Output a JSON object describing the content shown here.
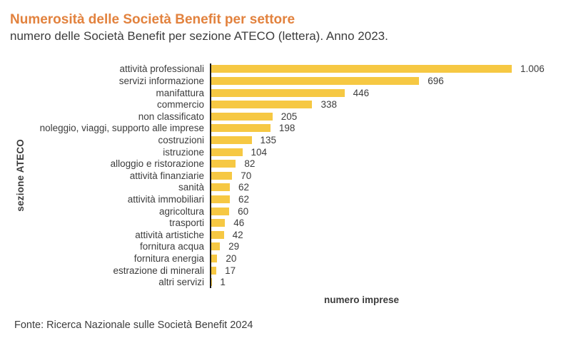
{
  "header": {
    "title": "Numerosità delle Società Benefit per settore",
    "subtitle": "numero delle Società Benefit per sezione ATECO (lettera). Anno 2023."
  },
  "chart_data": {
    "type": "bar",
    "orientation": "horizontal",
    "title": "Numerosità delle Società Benefit per settore",
    "subtitle": "numero delle Società Benefit per sezione ATECO (lettera). Anno 2023.",
    "xlabel": "numero imprese",
    "ylabel": "sezione ATECO",
    "xlim": [
      0,
      1006
    ],
    "grid": false,
    "legend": false,
    "bar_color": "#f6c843",
    "axis_color": "#1a1a1a",
    "categories": [
      "attività professionali",
      "servizi informazione",
      "manifattura",
      "commercio",
      "non classificato",
      "noleggio, viaggi, supporto alle imprese",
      "costruzioni",
      "istruzione",
      "alloggio e ristorazione",
      "attività finanziarie",
      "sanità",
      "attività immobiliari",
      "agricoltura",
      "trasporti",
      "attività artistiche",
      "fornitura acqua",
      "fornitura energia",
      "estrazione di minerali",
      "altri servizi"
    ],
    "values": [
      1006,
      696,
      446,
      338,
      205,
      198,
      135,
      104,
      82,
      70,
      62,
      62,
      60,
      46,
      42,
      29,
      20,
      17,
      1
    ],
    "value_labels": [
      "1.006",
      "696",
      "446",
      "338",
      "205",
      "198",
      "135",
      "104",
      "82",
      "70",
      "62",
      "62",
      "60",
      "46",
      "42",
      "29",
      "20",
      "17",
      "1"
    ]
  },
  "footer": {
    "source": "Fonte: Ricerca Nazionale sulle Società Benefit 2024"
  },
  "colors": {
    "title_accent": "#e2823e",
    "text": "#3c3c3c",
    "bar": "#f6c843",
    "axis": "#1a1a1a",
    "background": "#ffffff"
  }
}
